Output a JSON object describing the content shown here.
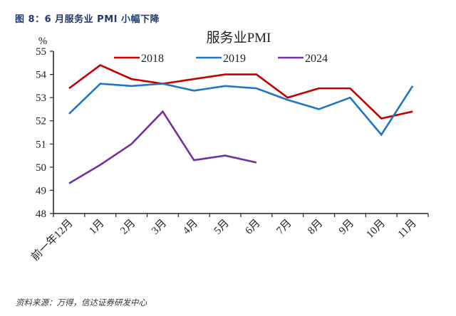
{
  "figure": {
    "caption": "图 8：6 月服务业 PMI 小幅下降",
    "source": "资料来源：万得，信达证券研发中心"
  },
  "chart_data": {
    "type": "line",
    "title": "服务业PMI",
    "ylabel": "%",
    "xlabel": "",
    "ylim": [
      48,
      55
    ],
    "yticks": [
      48,
      49,
      50,
      51,
      52,
      53,
      54,
      55
    ],
    "grid": false,
    "legend_position": "top-center",
    "categories": [
      "前一年12月",
      "1月",
      "2月",
      "3月",
      "4月",
      "5月",
      "6月",
      "7月",
      "8月",
      "9月",
      "10月",
      "11月"
    ],
    "series": [
      {
        "name": "2018",
        "color": "#c00000",
        "values": [
          53.4,
          54.4,
          53.8,
          53.6,
          53.8,
          54.0,
          54.0,
          53.0,
          53.4,
          53.4,
          52.1,
          52.4
        ]
      },
      {
        "name": "2019",
        "color": "#1f77c4",
        "values": [
          52.3,
          53.6,
          53.5,
          53.6,
          53.3,
          53.5,
          53.4,
          52.9,
          52.5,
          53.0,
          51.4,
          53.5
        ]
      },
      {
        "name": "2024",
        "color": "#7030a0",
        "values": [
          49.3,
          50.1,
          51.0,
          52.4,
          50.3,
          50.5,
          50.2,
          null,
          null,
          null,
          null,
          null
        ]
      }
    ]
  }
}
